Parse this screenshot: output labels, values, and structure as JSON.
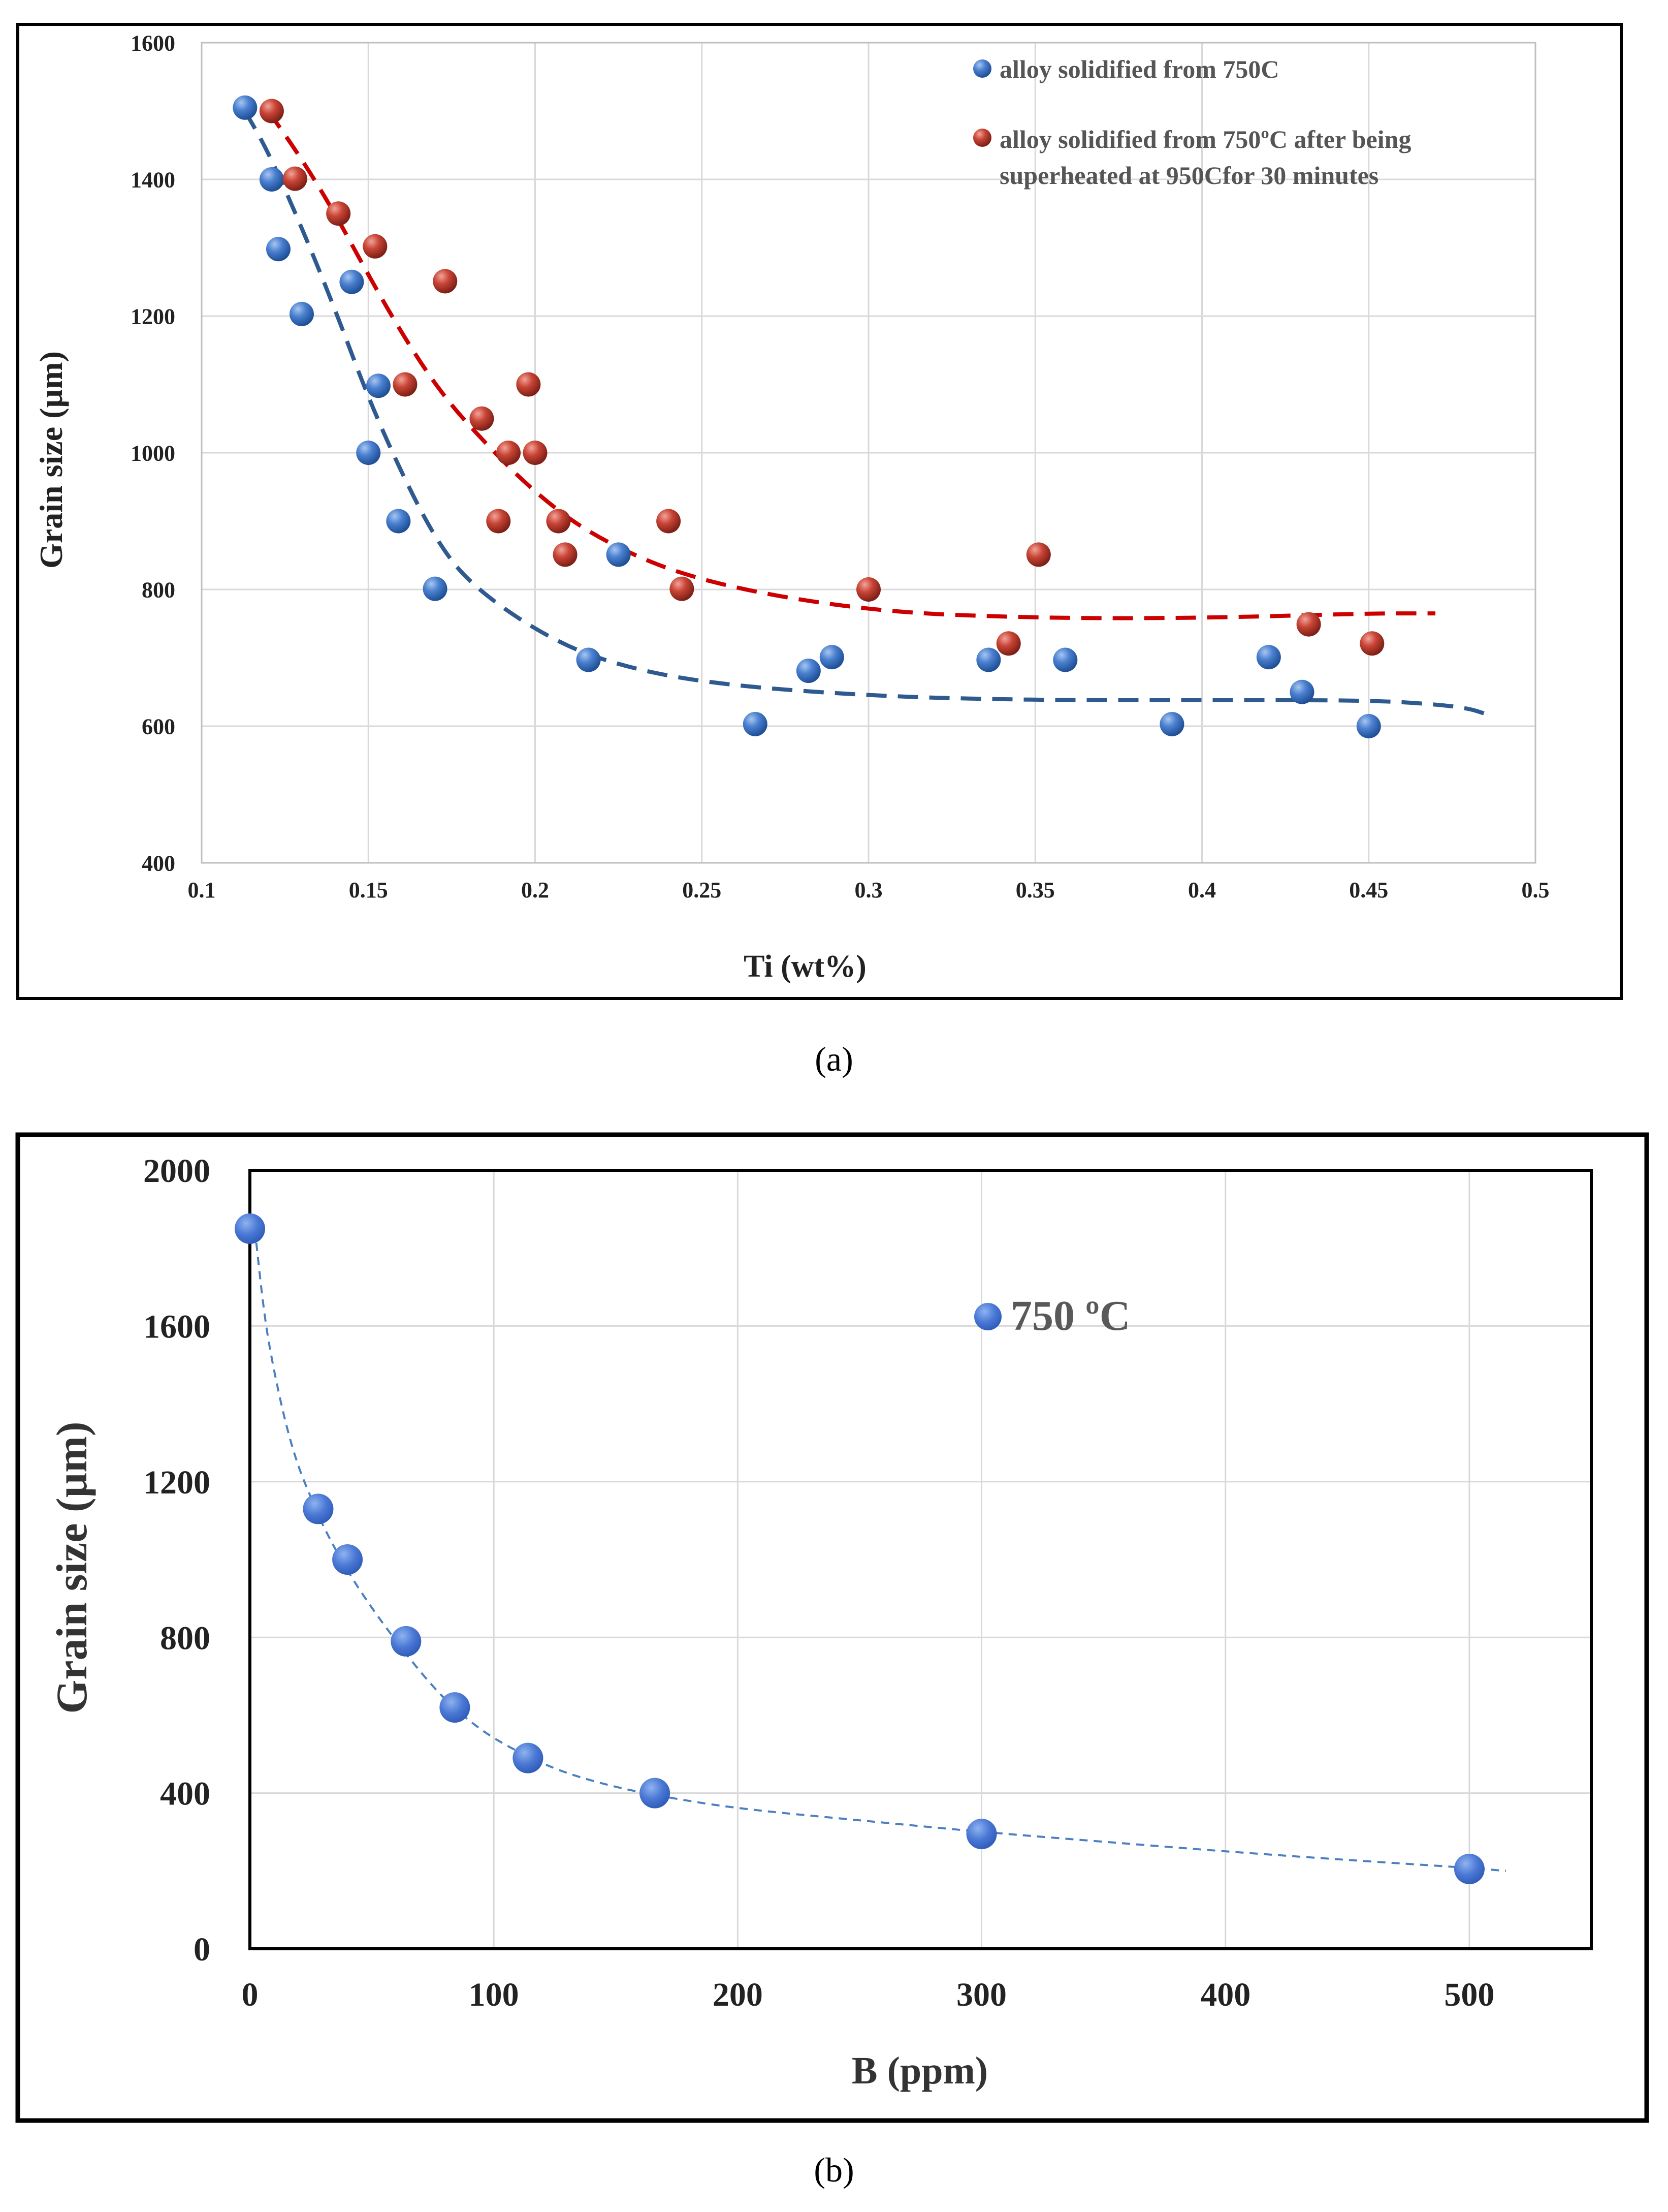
{
  "figure": {
    "panel_a_label": "(a)",
    "panel_b_label": "(b)"
  },
  "colors": {
    "blue_marker": "#3f74c4",
    "red_marker": "#c0392b",
    "blue_trend": "#2e5a8f",
    "red_trend": "#cc0000",
    "panel_b_marker": "#4a78d4",
    "panel_b_trend": "#4a7fc0",
    "grid": "#d9d9d9",
    "frame": "#000000"
  },
  "chart_data": [
    {
      "id": "a",
      "type": "scatter",
      "title": "",
      "xlabel": "Ti (wt%)",
      "ylabel": "Grain size (µm)",
      "xlim": [
        0.1,
        0.5
      ],
      "ylim": [
        400,
        1600
      ],
      "xticks": [
        0.1,
        0.15,
        0.2,
        0.25,
        0.3,
        0.35,
        0.4,
        0.45,
        0.5
      ],
      "xtick_labels": [
        "0.1",
        "0.15",
        "0.2",
        "0.25",
        "0.3",
        "0.35",
        "0.4",
        "0.45",
        "0.5"
      ],
      "yticks": [
        400,
        600,
        800,
        1000,
        1200,
        1400,
        1600
      ],
      "ytick_labels": [
        "400",
        "600",
        "800",
        "1000",
        "1200",
        "1400",
        "1600"
      ],
      "grid": true,
      "legend_position": "top-right",
      "series": [
        {
          "name": "alloy solidified from 750C",
          "legend_lines": [
            "alloy solidified from 750C"
          ],
          "color_key": "blue_marker",
          "points": [
            [
              0.113,
              1505
            ],
            [
              0.121,
              1400
            ],
            [
              0.123,
              1298
            ],
            [
              0.13,
              1203
            ],
            [
              0.145,
              1250
            ],
            [
              0.15,
              1000
            ],
            [
              0.153,
              1098
            ],
            [
              0.159,
              900
            ],
            [
              0.17,
              801
            ],
            [
              0.216,
              697
            ],
            [
              0.225,
              851
            ],
            [
              0.266,
              603
            ],
            [
              0.282,
              681
            ],
            [
              0.289,
              701
            ],
            [
              0.336,
              697
            ],
            [
              0.359,
              697
            ],
            [
              0.391,
              603
            ],
            [
              0.42,
              701
            ],
            [
              0.43,
              650
            ],
            [
              0.45,
              600
            ]
          ],
          "trend": {
            "style": "dashed",
            "color_key": "blue_trend",
            "points": [
              [
                0.113,
                1500
              ],
              [
                0.12,
                1440
              ],
              [
                0.13,
                1330
              ],
              [
                0.14,
                1210
              ],
              [
                0.15,
                1080
              ],
              [
                0.16,
                970
              ],
              [
                0.17,
                875
              ],
              [
                0.18,
                810
              ],
              [
                0.2,
                740
              ],
              [
                0.22,
                695
              ],
              [
                0.25,
                663
              ],
              [
                0.3,
                644
              ],
              [
                0.35,
                638
              ],
              [
                0.4,
                638
              ],
              [
                0.45,
                638
              ],
              [
                0.47,
                632
              ],
              [
                0.48,
                626
              ],
              [
                0.485,
                618
              ]
            ]
          }
        },
        {
          "name": "alloy solidified from 750°C after being superheated at 950Cfor 30 minutes",
          "legend_lines": [
            "alloy solidified from 750ºC after being",
            "superheated at  950Cfor 30 minutes"
          ],
          "color_key": "red_marker",
          "points": [
            [
              0.121,
              1500
            ],
            [
              0.128,
              1401
            ],
            [
              0.141,
              1350
            ],
            [
              0.152,
              1302
            ],
            [
              0.161,
              1100
            ],
            [
              0.173,
              1251
            ],
            [
              0.184,
              1050
            ],
            [
              0.189,
              900
            ],
            [
              0.192,
              1000
            ],
            [
              0.198,
              1100
            ],
            [
              0.2,
              1000
            ],
            [
              0.207,
              900
            ],
            [
              0.209,
              851
            ],
            [
              0.24,
              900
            ],
            [
              0.244,
              801
            ],
            [
              0.3,
              800
            ],
            [
              0.342,
              721
            ],
            [
              0.351,
              851
            ],
            [
              0.432,
              749
            ],
            [
              0.451,
              721
            ]
          ],
          "trend": {
            "style": "dashed",
            "color_key": "red_trend",
            "points": [
              [
                0.12,
                1500
              ],
              [
                0.13,
                1430
              ],
              [
                0.14,
                1350
              ],
              [
                0.15,
                1260
              ],
              [
                0.16,
                1175
              ],
              [
                0.17,
                1100
              ],
              [
                0.18,
                1040
              ],
              [
                0.2,
                940
              ],
              [
                0.22,
                870
              ],
              [
                0.25,
                810
              ],
              [
                0.3,
                768
              ],
              [
                0.35,
                758
              ],
              [
                0.4,
                758
              ],
              [
                0.45,
                765
              ],
              [
                0.47,
                765
              ]
            ]
          }
        }
      ]
    },
    {
      "id": "b",
      "type": "scatter",
      "title": "",
      "xlabel": "B (ppm)",
      "ylabel": "Grain size (µm)",
      "xlim": [
        0,
        550
      ],
      "ylim": [
        0,
        2000
      ],
      "xticks": [
        0,
        100,
        200,
        300,
        400,
        500
      ],
      "xtick_labels": [
        "0",
        "100",
        "200",
        "300",
        "400",
        "500"
      ],
      "yticks": [
        0,
        400,
        800,
        1200,
        1600,
        2000
      ],
      "ytick_labels": [
        "0",
        "400",
        "800",
        "1200",
        "1600",
        "2000"
      ],
      "grid": true,
      "legend_position": "upper-middle",
      "series": [
        {
          "name": "750 ºC",
          "legend_lines": [
            "750 ºC"
          ],
          "color_key": "panel_b_marker",
          "points": [
            [
              0,
              1850
            ],
            [
              28,
              1130
            ],
            [
              40,
              1000
            ],
            [
              64,
              790
            ],
            [
              84,
              620
            ],
            [
              114,
              490
            ],
            [
              166,
              400
            ],
            [
              300,
              295
            ],
            [
              500,
              205
            ]
          ],
          "trend": {
            "style": "dashed",
            "color_key": "panel_b_trend",
            "points": [
              [
                2,
                1850
              ],
              [
                6,
                1620
              ],
              [
                10,
                1480
              ],
              [
                15,
                1340
              ],
              [
                20,
                1235
              ],
              [
                25,
                1160
              ],
              [
                30,
                1085
              ],
              [
                40,
                970
              ],
              [
                50,
                875
              ],
              [
                60,
                790
              ],
              [
                70,
                710
              ],
              [
                80,
                640
              ],
              [
                90,
                585
              ],
              [
                100,
                540
              ],
              [
                115,
                490
              ],
              [
                130,
                450
              ],
              [
                150,
                415
              ],
              [
                170,
                390
              ],
              [
                200,
                360
              ],
              [
                250,
                330
              ],
              [
                300,
                300
              ],
              [
                350,
                275
              ],
              [
                400,
                250
              ],
              [
                450,
                228
              ],
              [
                500,
                208
              ],
              [
                515,
                200
              ]
            ]
          }
        }
      ]
    }
  ]
}
